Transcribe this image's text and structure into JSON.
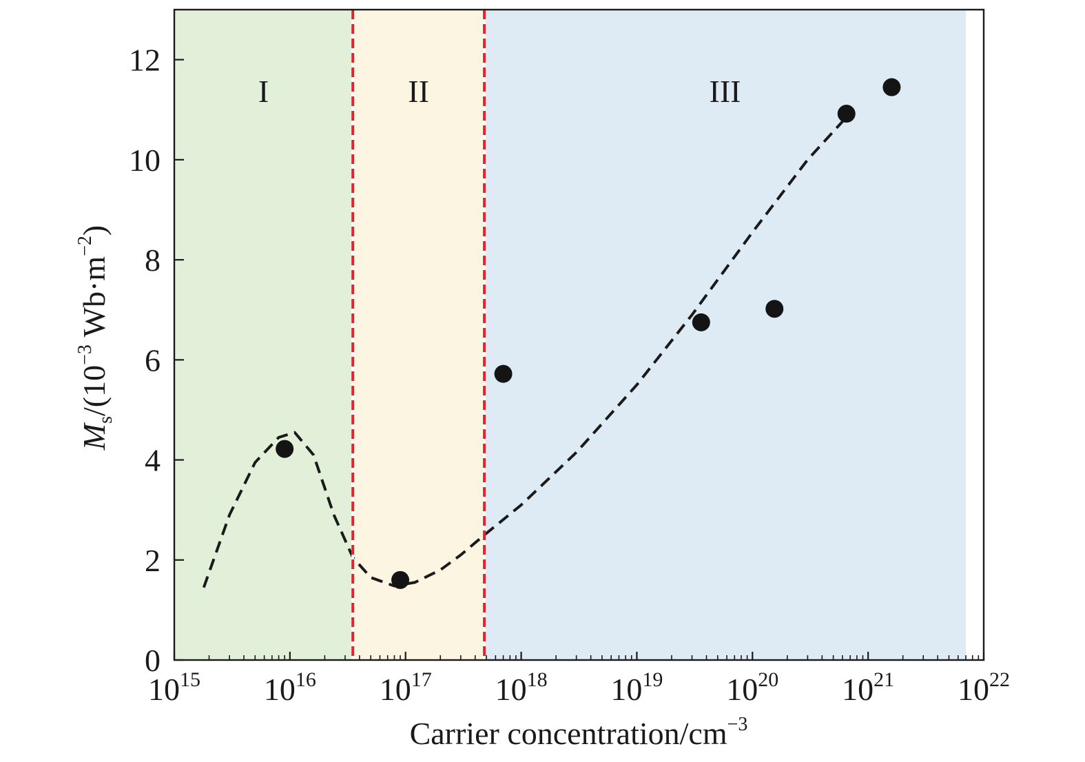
{
  "chart_data": {
    "type": "scatter",
    "xscale": "log",
    "x_min_exponent": 15,
    "x_max_exponent": 22,
    "xlim": [
      1000000000000000.0,
      1e+22
    ],
    "ylim": [
      0,
      13
    ],
    "xlabel": "Carrier concentration/cm",
    "xlabel_sup": "−3",
    "ylabel": {
      "symbol": "M",
      "subscript": "s",
      "prefix": "/(10",
      "exp": "−3",
      "unit": " Wb·m",
      "unit_exp": "−2",
      "suffix": ")"
    },
    "x_ticks": [
      {
        "base": "10",
        "exp": "15"
      },
      {
        "base": "10",
        "exp": "16"
      },
      {
        "base": "10",
        "exp": "17"
      },
      {
        "base": "10",
        "exp": "18"
      },
      {
        "base": "10",
        "exp": "19"
      },
      {
        "base": "10",
        "exp": "20"
      },
      {
        "base": "10",
        "exp": "21"
      },
      {
        "base": "10",
        "exp": "22"
      }
    ],
    "y_ticks": [
      "0",
      "2",
      "4",
      "6",
      "8",
      "10",
      "12"
    ],
    "regions": [
      {
        "label": "I",
        "x_start": 1000000000000000.0,
        "x_end": 3.5e+16,
        "color": "#e2f0da"
      },
      {
        "label": "II",
        "x_start": 3.5e+16,
        "x_end": 4.8e+17,
        "color": "#fcf5e2"
      },
      {
        "label": "III",
        "x_start": 4.8e+17,
        "x_end": 7e+21,
        "color": "#deeaf4"
      }
    ],
    "boundaries": [
      3.5e+16,
      4.8e+17
    ],
    "boundary_color": "#e0262d",
    "points": [
      {
        "x": 9000000000000000.0,
        "y": 4.22
      },
      {
        "x": 9e+16,
        "y": 1.6
      },
      {
        "x": 7e+17,
        "y": 5.72
      },
      {
        "x": 3.6e+19,
        "y": 6.75
      },
      {
        "x": 1.55e+20,
        "y": 7.02
      },
      {
        "x": 6.5e+20,
        "y": 10.92
      },
      {
        "x": 1.6e+21,
        "y": 11.45
      }
    ],
    "trend": [
      {
        "x": 1800000000000000.0,
        "y": 1.45
      },
      {
        "x": 3000000000000000.0,
        "y": 2.9
      },
      {
        "x": 5000000000000000.0,
        "y": 3.95
      },
      {
        "x": 8000000000000000.0,
        "y": 4.45
      },
      {
        "x": 1.1e+16,
        "y": 4.55
      },
      {
        "x": 1.6e+16,
        "y": 4.1
      },
      {
        "x": 2.4e+16,
        "y": 2.9
      },
      {
        "x": 3.5e+16,
        "y": 2.05
      },
      {
        "x": 5e+16,
        "y": 1.65
      },
      {
        "x": 8e+16,
        "y": 1.48
      },
      {
        "x": 1.2e+17,
        "y": 1.55
      },
      {
        "x": 2e+17,
        "y": 1.8
      },
      {
        "x": 3e+17,
        "y": 2.1
      },
      {
        "x": 4.8e+17,
        "y": 2.5
      },
      {
        "x": 1e+18,
        "y": 3.1
      },
      {
        "x": 3e+18,
        "y": 4.15
      },
      {
        "x": 1e+19,
        "y": 5.5
      },
      {
        "x": 3e+19,
        "y": 6.9
      },
      {
        "x": 1e+20,
        "y": 8.55
      },
      {
        "x": 3e+20,
        "y": 10.0
      },
      {
        "x": 6.5e+20,
        "y": 10.85
      }
    ],
    "marker_color": "#141414",
    "line_color": "#1a1a1a",
    "grid": false
  }
}
